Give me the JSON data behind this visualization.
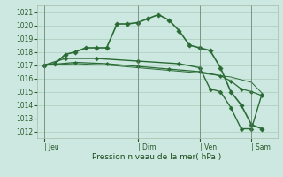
{
  "background_color": "#cce8e0",
  "grid_color": "#aaccbb",
  "line_color": "#2a6b35",
  "marker_color": "#2a6b35",
  "xlabel": "Pression niveau de la mer( hPa )",
  "ylim": [
    1011.5,
    1021.5
  ],
  "yticks": [
    1012,
    1013,
    1014,
    1015,
    1016,
    1017,
    1018,
    1019,
    1020,
    1021
  ],
  "xtick_labels": [
    "| Jeu",
    "| Dim",
    "| Ven",
    "| Sam"
  ],
  "xtick_positions": [
    0,
    36,
    60,
    80
  ],
  "xlim": [
    -3,
    90
  ],
  "series1_x": [
    0,
    4,
    8,
    12,
    16,
    20,
    24,
    28,
    32,
    36,
    40,
    44,
    48,
    52,
    56,
    60,
    64,
    68,
    72,
    76,
    80,
    84
  ],
  "series1_y": [
    1017.0,
    1017.1,
    1017.8,
    1018.0,
    1018.3,
    1018.3,
    1018.3,
    1020.1,
    1020.1,
    1020.2,
    1020.5,
    1020.8,
    1020.4,
    1019.6,
    1018.5,
    1018.3,
    1018.1,
    1016.8,
    1015.0,
    1014.0,
    1012.5,
    1012.2
  ],
  "series2_x": [
    0,
    8,
    20,
    36,
    52,
    60,
    64,
    68,
    72,
    76,
    80,
    84
  ],
  "series2_y": [
    1017.0,
    1017.5,
    1017.5,
    1017.3,
    1017.1,
    1016.8,
    1015.2,
    1015.0,
    1013.8,
    1012.2,
    1012.2,
    1014.8
  ],
  "series3_x": [
    0,
    12,
    24,
    36,
    48,
    60,
    68,
    72,
    76,
    80,
    84
  ],
  "series3_y": [
    1017.0,
    1017.2,
    1017.1,
    1016.9,
    1016.7,
    1016.5,
    1016.2,
    1015.8,
    1015.2,
    1015.0,
    1014.7
  ],
  "series4_x": [
    0,
    12,
    24,
    36,
    48,
    60,
    72,
    80,
    84
  ],
  "series4_y": [
    1017.0,
    1017.1,
    1017.0,
    1016.8,
    1016.6,
    1016.4,
    1016.1,
    1015.7,
    1014.9
  ]
}
